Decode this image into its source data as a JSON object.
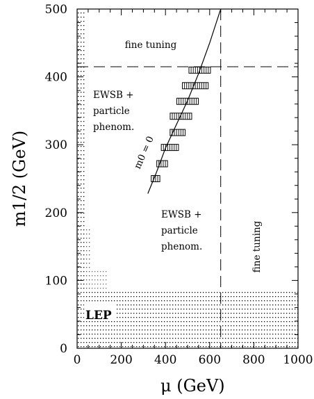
{
  "chart_data": {
    "type": "scatter",
    "xlabel": "μ (GeV)",
    "ylabel": "m1/2 (GeV)",
    "xlim": [
      0,
      1000
    ],
    "ylim": [
      0,
      500
    ],
    "x_ticks": [
      "0",
      "200",
      "400",
      "600",
      "800",
      "1000"
    ],
    "y_ticks": [
      "0",
      "100",
      "200",
      "300",
      "400",
      "500"
    ],
    "annotations": {
      "fine_tuning_top": "fine tuning",
      "fine_tuning_right": "fine tuning",
      "ewsb_left": [
        "EWSB +",
        "particle",
        "phenom."
      ],
      "ewsb_mid": [
        "EWSB +",
        "particle",
        "phenom."
      ],
      "m0_label": "m0 = 0",
      "lep": "LEP"
    },
    "fine_tuning_limits": {
      "m_half": 415,
      "mu": 650
    },
    "m0_zero_curve": [
      [
        320,
        228
      ],
      [
        360,
        260
      ],
      [
        400,
        295
      ],
      [
        450,
        330
      ],
      [
        500,
        365
      ],
      [
        550,
        405
      ],
      [
        600,
        450
      ],
      [
        650,
        500
      ]
    ],
    "allowed_points": [
      {
        "mu": 355,
        "m": 250,
        "w": 4
      },
      {
        "mu": 385,
        "m": 272,
        "w": 5
      },
      {
        "mu": 420,
        "m": 296,
        "w": 8
      },
      {
        "mu": 455,
        "m": 318,
        "w": 7
      },
      {
        "mu": 470,
        "m": 342,
        "w": 10
      },
      {
        "mu": 500,
        "m": 364,
        "w": 10
      },
      {
        "mu": 535,
        "m": 387,
        "w": 12
      },
      {
        "mu": 555,
        "m": 410,
        "w": 10
      }
    ],
    "lep_excluded_band": {
      "m_half_max": 85
    },
    "grid": false
  }
}
